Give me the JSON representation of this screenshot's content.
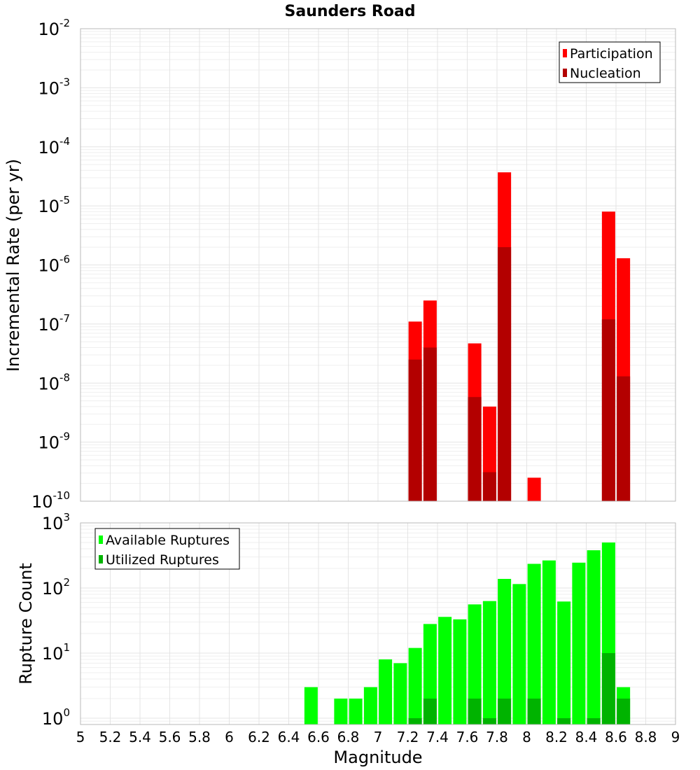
{
  "chart_data": [
    {
      "type": "bar",
      "title": "Saunders Road",
      "xlabel": "",
      "ylabel": "Incremental Rate (per yr)",
      "yscale": "log",
      "ylim": [
        1e-10,
        0.01
      ],
      "xlim": [
        5,
        9
      ],
      "grid": true,
      "y_ticks": [
        {
          "base": "10",
          "exp": "-10"
        },
        {
          "base": "10",
          "exp": "-9"
        },
        {
          "base": "10",
          "exp": "-8"
        },
        {
          "base": "10",
          "exp": "-7"
        },
        {
          "base": "10",
          "exp": "-6"
        },
        {
          "base": "10",
          "exp": "-5"
        },
        {
          "base": "10",
          "exp": "-4"
        },
        {
          "base": "10",
          "exp": "-3"
        },
        {
          "base": "10",
          "exp": "-2"
        }
      ],
      "legend": {
        "position": "top-right",
        "entries": [
          "Participation",
          "Nucleation"
        ]
      },
      "series": [
        {
          "name": "Participation",
          "color": "#ff0000",
          "points": [
            {
              "x": 7.25,
              "y": 1.1e-07
            },
            {
              "x": 7.35,
              "y": 2.5e-07
            },
            {
              "x": 7.65,
              "y": 4.7e-08
            },
            {
              "x": 7.75,
              "y": 4e-09
            },
            {
              "x": 7.85,
              "y": 3.7e-05
            },
            {
              "x": 8.05,
              "y": 2.5e-10
            },
            {
              "x": 8.55,
              "y": 8e-06
            },
            {
              "x": 8.65,
              "y": 1.3e-06
            }
          ]
        },
        {
          "name": "Nucleation",
          "color": "#b30000",
          "points": [
            {
              "x": 7.25,
              "y": 2.5e-08
            },
            {
              "x": 7.35,
              "y": 4e-08
            },
            {
              "x": 7.65,
              "y": 5.8e-09
            },
            {
              "x": 7.75,
              "y": 3.1e-10
            },
            {
              "x": 7.85,
              "y": 2e-06
            },
            {
              "x": 8.55,
              "y": 1.2e-07
            },
            {
              "x": 8.65,
              "y": 1.3e-08
            }
          ]
        }
      ]
    },
    {
      "type": "bar",
      "title": "",
      "xlabel": "Magnitude",
      "ylabel": "Rupture Count",
      "yscale": "log",
      "ylim": [
        0.8,
        1000
      ],
      "xlim": [
        5,
        9
      ],
      "grid": true,
      "x_ticks": [
        "5",
        "5.2",
        "5.4",
        "5.6",
        "5.8",
        "6",
        "6.2",
        "6.4",
        "6.6",
        "6.8",
        "7",
        "7.2",
        "7.4",
        "7.6",
        "7.8",
        "8",
        "8.2",
        "8.4",
        "8.6",
        "8.8",
        "9"
      ],
      "y_ticks": [
        {
          "base": "10",
          "exp": "0"
        },
        {
          "base": "10",
          "exp": "1"
        },
        {
          "base": "10",
          "exp": "2"
        },
        {
          "base": "10",
          "exp": "3"
        }
      ],
      "legend": {
        "position": "top-left",
        "entries": [
          "Available Ruptures",
          "Utilized Ruptures"
        ]
      },
      "series": [
        {
          "name": "Available Ruptures",
          "color": "#00ff00",
          "points": [
            {
              "x": 6.55,
              "y": 3
            },
            {
              "x": 6.75,
              "y": 2
            },
            {
              "x": 6.85,
              "y": 2
            },
            {
              "x": 6.95,
              "y": 3
            },
            {
              "x": 7.05,
              "y": 8
            },
            {
              "x": 7.15,
              "y": 7
            },
            {
              "x": 7.25,
              "y": 12
            },
            {
              "x": 7.35,
              "y": 28
            },
            {
              "x": 7.45,
              "y": 36
            },
            {
              "x": 7.55,
              "y": 33
            },
            {
              "x": 7.65,
              "y": 56
            },
            {
              "x": 7.75,
              "y": 63
            },
            {
              "x": 7.85,
              "y": 138
            },
            {
              "x": 7.95,
              "y": 115
            },
            {
              "x": 8.05,
              "y": 235
            },
            {
              "x": 8.15,
              "y": 265
            },
            {
              "x": 8.25,
              "y": 62
            },
            {
              "x": 8.35,
              "y": 245
            },
            {
              "x": 8.45,
              "y": 380
            },
            {
              "x": 8.55,
              "y": 500
            },
            {
              "x": 8.65,
              "y": 3
            }
          ]
        },
        {
          "name": "Utilized Ruptures",
          "color": "#00b300",
          "points": [
            {
              "x": 7.25,
              "y": 1
            },
            {
              "x": 7.35,
              "y": 2
            },
            {
              "x": 7.65,
              "y": 2
            },
            {
              "x": 7.75,
              "y": 1
            },
            {
              "x": 7.85,
              "y": 2
            },
            {
              "x": 8.05,
              "y": 2
            },
            {
              "x": 8.25,
              "y": 1
            },
            {
              "x": 8.45,
              "y": 1
            },
            {
              "x": 8.55,
              "y": 10
            },
            {
              "x": 8.65,
              "y": 2
            }
          ]
        }
      ]
    }
  ]
}
